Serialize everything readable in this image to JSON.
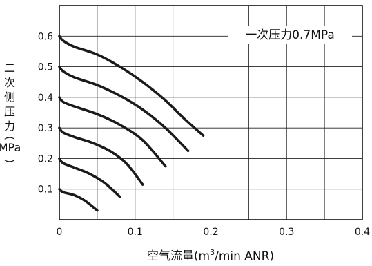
{
  "chart_data": {
    "type": "line",
    "xlabel_main": "空气流量(m",
    "xlabel_sup": "3",
    "xlabel_tail": "/min ANR)",
    "ylabel_chars": [
      "二",
      "次",
      "侧",
      "压",
      "力",
      "(",
      "MPa",
      ")"
    ],
    "annotation": "一次压力0.7MPa",
    "xlim": [
      0,
      0.4
    ],
    "ylim": [
      0,
      0.7
    ],
    "x_ticks": [
      0,
      0.1,
      0.2,
      0.3,
      0.4
    ],
    "x_tick_labels": [
      "0",
      "0.1",
      "0.2",
      "0.3",
      "0.4"
    ],
    "y_ticks": [
      0.1,
      0.2,
      0.3,
      0.4,
      0.5,
      0.6
    ],
    "y_tick_labels": [
      "0.1",
      "0.2",
      "0.3",
      "0.4",
      "0.5",
      "0.6"
    ],
    "grid": true,
    "series": [
      {
        "points": [
          [
            0.0,
            0.6
          ],
          [
            0.005,
            0.585
          ],
          [
            0.02,
            0.565
          ],
          [
            0.05,
            0.54
          ],
          [
            0.08,
            0.5
          ],
          [
            0.11,
            0.45
          ],
          [
            0.14,
            0.39
          ],
          [
            0.165,
            0.33
          ],
          [
            0.19,
            0.275
          ]
        ]
      },
      {
        "points": [
          [
            0.0,
            0.5
          ],
          [
            0.005,
            0.485
          ],
          [
            0.02,
            0.465
          ],
          [
            0.05,
            0.44
          ],
          [
            0.08,
            0.405
          ],
          [
            0.11,
            0.36
          ],
          [
            0.14,
            0.3
          ],
          [
            0.17,
            0.225
          ]
        ]
      },
      {
        "points": [
          [
            0.0,
            0.4
          ],
          [
            0.005,
            0.385
          ],
          [
            0.02,
            0.37
          ],
          [
            0.05,
            0.345
          ],
          [
            0.08,
            0.31
          ],
          [
            0.11,
            0.26
          ],
          [
            0.14,
            0.175
          ]
        ]
      },
      {
        "points": [
          [
            0.0,
            0.3
          ],
          [
            0.005,
            0.285
          ],
          [
            0.02,
            0.27
          ],
          [
            0.045,
            0.25
          ],
          [
            0.07,
            0.22
          ],
          [
            0.09,
            0.18
          ],
          [
            0.11,
            0.115
          ]
        ]
      },
      {
        "points": [
          [
            0.0,
            0.2
          ],
          [
            0.005,
            0.185
          ],
          [
            0.02,
            0.17
          ],
          [
            0.04,
            0.15
          ],
          [
            0.06,
            0.12
          ],
          [
            0.08,
            0.075
          ]
        ]
      },
      {
        "points": [
          [
            0.0,
            0.1
          ],
          [
            0.005,
            0.09
          ],
          [
            0.02,
            0.08
          ],
          [
            0.035,
            0.06
          ],
          [
            0.05,
            0.03
          ]
        ]
      }
    ]
  }
}
